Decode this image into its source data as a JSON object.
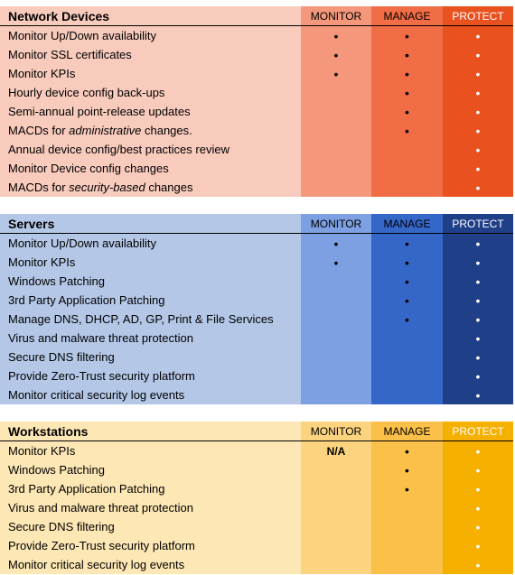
{
  "sections": [
    {
      "title": "Network Devices",
      "columns": [
        "MONITOR",
        "MANAGE",
        "PROTECT"
      ],
      "rows": [
        {
          "label": "Monitor Up/Down availability",
          "cells": [
            "•",
            "•",
            "•"
          ]
        },
        {
          "label": "Monitor SSL certificates",
          "cells": [
            "•",
            "•",
            "•"
          ]
        },
        {
          "label": "Monitor KPIs",
          "cells": [
            "•",
            "•",
            "•"
          ]
        },
        {
          "label": "Hourly device config back-ups",
          "cells": [
            null,
            "•",
            "•"
          ]
        },
        {
          "label": "Semi-annual point-release updates",
          "cells": [
            null,
            "•",
            "•"
          ]
        },
        {
          "label": [
            "MACDs for ",
            {
              "text": "administrative",
              "italic": true
            },
            " changes."
          ],
          "cells": [
            null,
            "•",
            "•"
          ]
        },
        {
          "label": "Annual device config/best practices review",
          "cells": [
            null,
            null,
            "•"
          ]
        },
        {
          "label": "Monitor Device config changes",
          "cells": [
            null,
            null,
            "•"
          ]
        },
        {
          "label": [
            "MACDs for ",
            {
              "text": "security-based",
              "italic": true
            },
            " changes"
          ],
          "cells": [
            null,
            null,
            "•"
          ]
        }
      ]
    },
    {
      "title": "Servers",
      "columns": [
        "MONITOR",
        "MANAGE",
        "PROTECT"
      ],
      "rows": [
        {
          "label": "Monitor Up/Down availability",
          "cells": [
            "•",
            "•",
            "•"
          ]
        },
        {
          "label": "Monitor KPIs",
          "cells": [
            "•",
            "•",
            "•"
          ]
        },
        {
          "label": "Windows Patching",
          "cells": [
            null,
            "•",
            "•"
          ]
        },
        {
          "label": "3rd Party Application Patching",
          "cells": [
            null,
            "•",
            "•"
          ]
        },
        {
          "label": "Manage DNS, DHCP, AD, GP, Print & File Services",
          "cells": [
            null,
            "•",
            "•"
          ]
        },
        {
          "label": "Virus and malware threat protection",
          "cells": [
            null,
            null,
            "•"
          ]
        },
        {
          "label": "Secure DNS filtering",
          "cells": [
            null,
            null,
            "•"
          ]
        },
        {
          "label": "Provide Zero-Trust security platform",
          "cells": [
            null,
            null,
            "•"
          ]
        },
        {
          "label": "Monitor critical security log events",
          "cells": [
            null,
            null,
            "•"
          ]
        }
      ]
    },
    {
      "title": "Workstations",
      "columns": [
        "MONITOR",
        "MANAGE",
        "PROTECT"
      ],
      "rows": [
        {
          "label": "Monitor KPIs",
          "cells": [
            "N/A",
            "•",
            "•"
          ]
        },
        {
          "label": "Windows Patching",
          "cells": [
            null,
            "•",
            "•"
          ]
        },
        {
          "label": "3rd Party Application Patching",
          "cells": [
            null,
            "•",
            "•"
          ]
        },
        {
          "label": "Virus and malware threat protection",
          "cells": [
            null,
            null,
            "•"
          ]
        },
        {
          "label": "Secure DNS filtering",
          "cells": [
            null,
            null,
            "•"
          ]
        },
        {
          "label": "Provide Zero-Trust security platform",
          "cells": [
            null,
            null,
            "•"
          ]
        },
        {
          "label": "Monitor critical security log events",
          "cells": [
            null,
            null,
            "•"
          ]
        }
      ]
    }
  ]
}
